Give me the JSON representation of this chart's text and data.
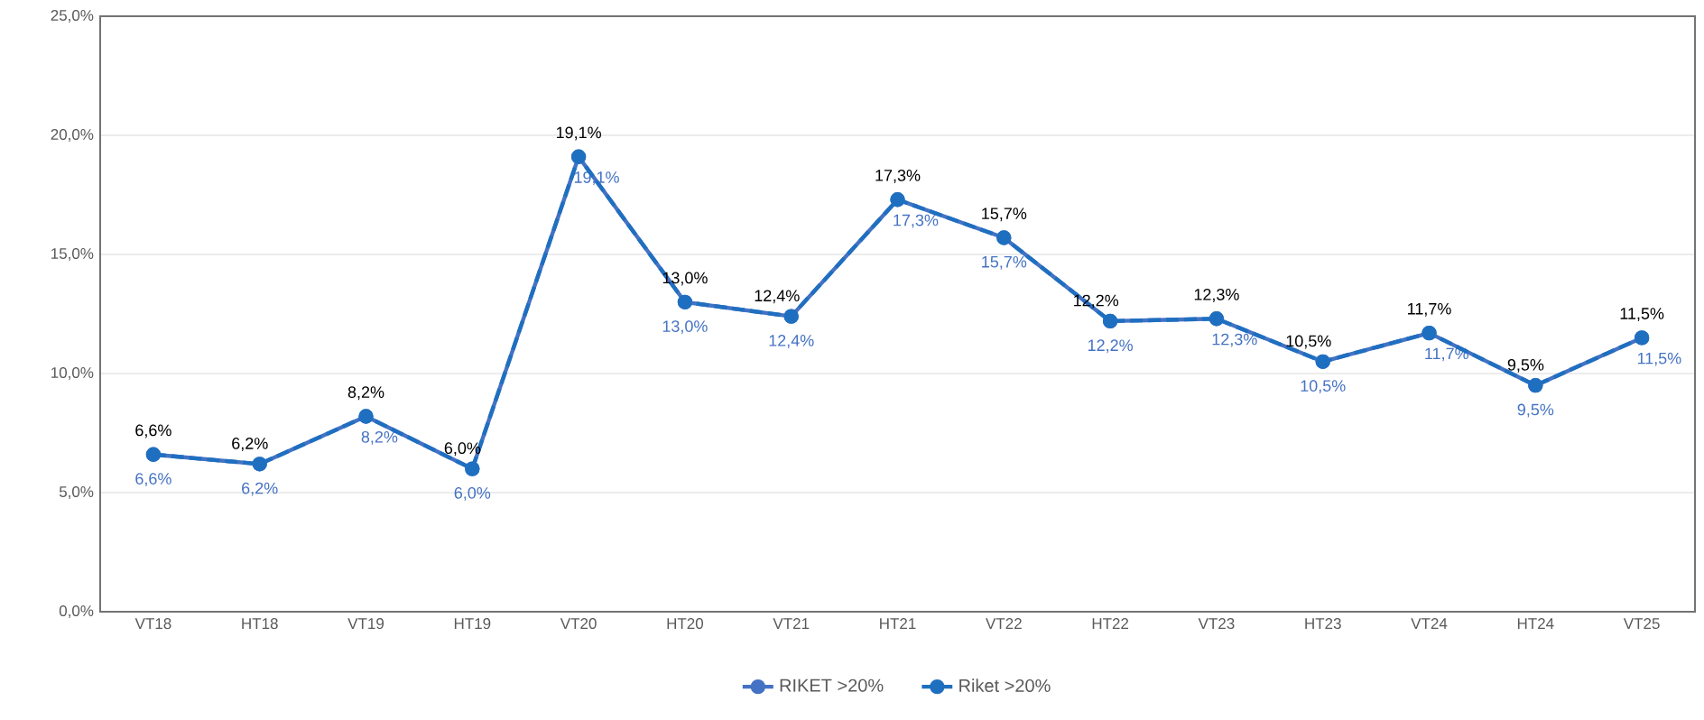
{
  "chart_data": {
    "type": "line",
    "categories": [
      "VT18",
      "HT18",
      "VT19",
      "HT19",
      "VT20",
      "HT20",
      "VT21",
      "HT21",
      "VT22",
      "HT22",
      "VT23",
      "HT23",
      "VT24",
      "HT24",
      "VT25"
    ],
    "series": [
      {
        "name": "RIKET >20%",
        "color": "#4472c4",
        "marker": "circle",
        "line_style": "solid",
        "values": [
          6.6,
          6.2,
          8.2,
          6.0,
          19.1,
          13.0,
          12.4,
          17.3,
          15.7,
          12.2,
          12.3,
          10.5,
          11.7,
          9.5,
          11.5
        ],
        "value_labels": [
          "6,6%",
          "6,2%",
          "8,2%",
          "6,0%",
          "19,1%",
          "13,0%",
          "12,4%",
          "17,3%",
          "15,7%",
          "12,2%",
          "12,3%",
          "10,5%",
          "11,7%",
          "9,5%",
          "11,5%"
        ]
      },
      {
        "name": "Riket >20%",
        "color": "#1f6fc0",
        "marker": "circle",
        "line_style": "dashed",
        "values": [
          6.6,
          6.2,
          8.2,
          6.0,
          19.1,
          13.0,
          12.4,
          17.3,
          15.7,
          12.2,
          12.3,
          10.5,
          11.7,
          9.5,
          11.5
        ],
        "value_labels": [
          "6,6%",
          "6,2%",
          "8,2%",
          "6,0%",
          "19,1%",
          "13,0%",
          "12,4%",
          "17,3%",
          "15,7%",
          "12,2%",
          "12,3%",
          "10,5%",
          "11,7%",
          "9,5%",
          "11,5%"
        ]
      }
    ],
    "ylim": [
      0,
      25
    ],
    "yticks": [
      {
        "value": 0,
        "label": "0,0%"
      },
      {
        "value": 5,
        "label": "5,0%"
      },
      {
        "value": 10,
        "label": "10,0%"
      },
      {
        "value": 15,
        "label": "15,0%"
      },
      {
        "value": 20,
        "label": "20,0%"
      },
      {
        "value": 25,
        "label": "25,0%"
      }
    ],
    "grid": "y",
    "legend": "bottom"
  }
}
